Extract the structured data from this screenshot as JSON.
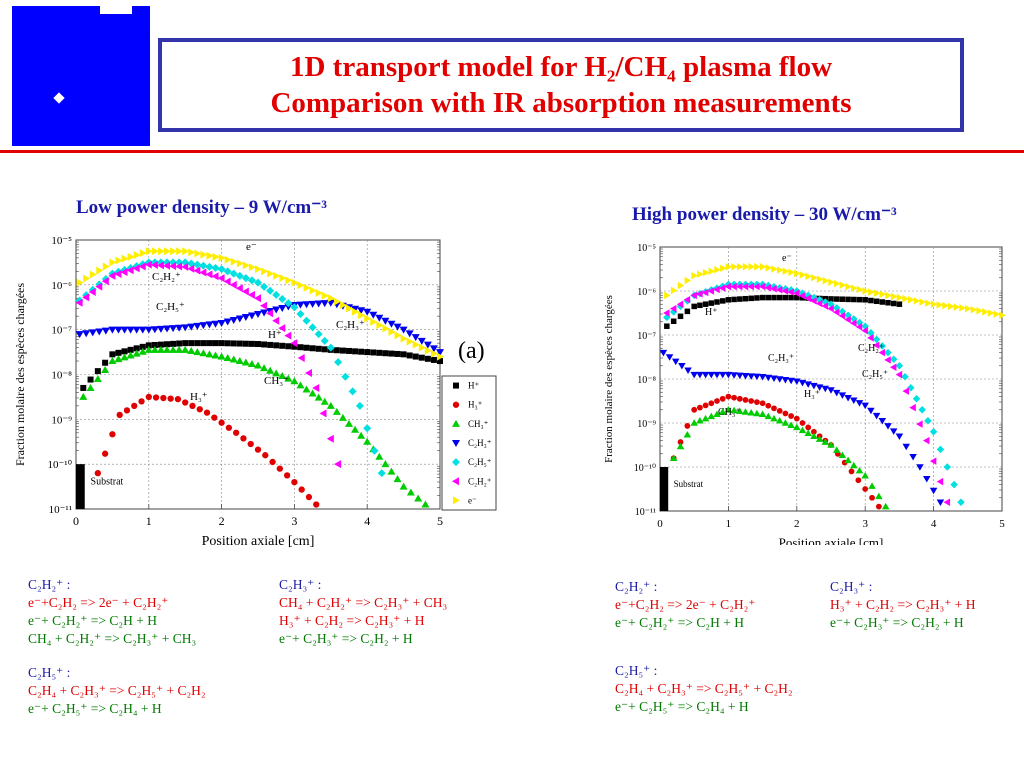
{
  "header": {
    "title_line1": "1D transport model for H₂/CH₄ plasma flow",
    "title_line2": "Comparison with IR absorption measurements"
  },
  "colors": {
    "logo_blue": "#0000ff",
    "title_red": "#e00000",
    "frame_blue": "#3333aa",
    "subtitle_blue": "#1a1aaa",
    "reaction_red": "#e00000",
    "reaction_green": "#007a00"
  },
  "chart_data": [
    {
      "type": "scatter",
      "title": "Low power density – 9 W/cm⁻³",
      "xlabel": "Position axiale [cm]",
      "ylabel": "Fraction molaire des espèces chargées",
      "xlim": [
        0,
        5
      ],
      "ylim_log10": [
        -11,
        -5
      ],
      "yscale": "log",
      "xticks": [
        "0",
        "1",
        "2",
        "3",
        "4",
        "5"
      ],
      "yticks": [
        "10⁻¹¹",
        "10⁻¹⁰",
        "10⁻⁹",
        "10⁻⁸",
        "10⁻⁷",
        "10⁻⁶",
        "10⁻⁵"
      ],
      "panel_label": "(a)",
      "substrat_label": "Substrat",
      "grid": true,
      "legend": "right",
      "series": [
        {
          "name": "H⁺",
          "color": "#000000",
          "marker": "square",
          "x": [
            0.1,
            0.5,
            1.0,
            1.5,
            2.0,
            2.5,
            3.0,
            3.5,
            4.0,
            4.5,
            5.0
          ],
          "log10_y": [
            -8.3,
            -7.55,
            -7.35,
            -7.3,
            -7.3,
            -7.32,
            -7.38,
            -7.45,
            -7.5,
            -7.55,
            -7.7
          ]
        },
        {
          "name": "H₃⁺",
          "color": "#e00000",
          "marker": "circle",
          "x": [
            0.3,
            0.6,
            1.0,
            1.4,
            1.8,
            2.2,
            2.6,
            3.0,
            3.3
          ],
          "log10_y": [
            -10.2,
            -8.9,
            -8.5,
            -8.55,
            -8.85,
            -9.3,
            -9.8,
            -10.4,
            -10.9
          ]
        },
        {
          "name": "CH₃⁺",
          "color": "#00cc00",
          "marker": "triangle-up",
          "x": [
            0.1,
            0.5,
            1.0,
            1.5,
            2.0,
            2.5,
            3.0,
            3.5,
            4.0,
            4.5,
            4.8
          ],
          "log10_y": [
            -8.5,
            -7.7,
            -7.45,
            -7.45,
            -7.6,
            -7.8,
            -8.15,
            -8.7,
            -9.5,
            -10.5,
            -10.9
          ]
        },
        {
          "name": "C₂H₃⁺",
          "color": "#0000ee",
          "marker": "triangle-down",
          "x": [
            0.05,
            0.5,
            1.0,
            1.5,
            2.0,
            2.5,
            3.0,
            3.5,
            4.0,
            4.5,
            5.0
          ],
          "log10_y": [
            -7.1,
            -7.0,
            -7.0,
            -6.95,
            -6.85,
            -6.65,
            -6.45,
            -6.4,
            -6.6,
            -7.0,
            -7.5
          ]
        },
        {
          "name": "C₂H₅⁺",
          "color": "#00e0e0",
          "marker": "diamond",
          "x": [
            0.05,
            0.5,
            1.0,
            1.5,
            2.0,
            2.5,
            3.0,
            3.5,
            3.9,
            4.2
          ],
          "log10_y": [
            -6.35,
            -5.75,
            -5.5,
            -5.5,
            -5.65,
            -5.95,
            -6.5,
            -7.4,
            -8.7,
            -10.2
          ]
        },
        {
          "name": "C₂H₂⁺",
          "color": "#ff00ff",
          "marker": "triangle-left",
          "x": [
            0.05,
            0.5,
            1.0,
            1.5,
            2.0,
            2.5,
            3.0,
            3.3,
            3.6
          ],
          "log10_y": [
            -6.4,
            -5.8,
            -5.55,
            -5.6,
            -5.85,
            -6.3,
            -7.3,
            -8.3,
            -10.0
          ]
        },
        {
          "name": "e⁻",
          "color": "#ffee00",
          "marker": "triangle-right",
          "x": [
            0.05,
            0.5,
            1.0,
            1.5,
            2.0,
            2.5,
            3.0,
            3.5,
            4.0,
            4.5,
            5.0
          ],
          "log10_y": [
            -5.95,
            -5.5,
            -5.25,
            -5.25,
            -5.4,
            -5.65,
            -5.95,
            -6.3,
            -6.75,
            -7.2,
            -7.6
          ]
        }
      ],
      "annotations": [
        "e⁻",
        "C₂H₂⁺",
        "C₂H₅⁺",
        "C₂H₃⁺",
        "H⁺",
        "CH₃⁺",
        "H₃⁺"
      ]
    },
    {
      "type": "scatter",
      "title": "High power density – 30 W/cm⁻³",
      "xlabel": "Position axiale [cm]",
      "ylabel": "Fraction molaire des espèces chargées",
      "xlim": [
        0,
        5
      ],
      "ylim_log10": [
        -11,
        -5
      ],
      "yscale": "log",
      "xticks": [
        "0",
        "1",
        "2",
        "3",
        "4",
        "5"
      ],
      "yticks": [
        "10⁻¹¹",
        "10⁻¹⁰",
        "10⁻⁹",
        "10⁻⁸",
        "10⁻⁷",
        "10⁻⁶",
        "10⁻⁵"
      ],
      "substrat_label": "Substrat",
      "grid": true,
      "series": [
        {
          "name": "H⁺",
          "color": "#000000",
          "marker": "square",
          "x": [
            0.1,
            0.5,
            1.0,
            1.5,
            2.0,
            2.5,
            3.0,
            3.5
          ],
          "log10_y": [
            -6.8,
            -6.35,
            -6.2,
            -6.15,
            -6.15,
            -6.18,
            -6.2,
            -6.3
          ]
        },
        {
          "name": "H₃⁺",
          "color": "#e00000",
          "marker": "circle",
          "x": [
            0.2,
            0.5,
            1.0,
            1.5,
            2.0,
            2.5,
            2.9,
            3.2
          ],
          "log10_y": [
            -9.8,
            -8.7,
            -8.4,
            -8.55,
            -8.9,
            -9.5,
            -10.3,
            -10.9
          ]
        },
        {
          "name": "CH₃⁺",
          "color": "#00cc00",
          "marker": "triangle-up",
          "x": [
            0.2,
            0.5,
            1.0,
            1.5,
            2.0,
            2.5,
            3.0,
            3.3
          ],
          "log10_y": [
            -9.8,
            -9.0,
            -8.7,
            -8.8,
            -9.1,
            -9.5,
            -10.2,
            -10.9
          ]
        },
        {
          "name": "C₂H₃⁺",
          "color": "#0000ee",
          "marker": "triangle-down",
          "x": [
            0.05,
            0.5,
            1.0,
            1.5,
            2.0,
            2.5,
            3.0,
            3.5,
            3.8,
            4.1
          ],
          "log10_y": [
            -7.4,
            -7.9,
            -7.9,
            -7.95,
            -8.05,
            -8.25,
            -8.6,
            -9.3,
            -10.0,
            -10.8
          ]
        },
        {
          "name": "C₂H₅⁺",
          "color": "#00e0e0",
          "marker": "diamond",
          "x": [
            0.1,
            0.5,
            1.0,
            1.5,
            2.0,
            2.5,
            3.0,
            3.5,
            4.0,
            4.4
          ],
          "log10_y": [
            -6.6,
            -6.1,
            -5.85,
            -5.85,
            -6.0,
            -6.3,
            -6.8,
            -7.7,
            -9.2,
            -10.8
          ]
        },
        {
          "name": "C₂H₂⁺",
          "color": "#ff00ff",
          "marker": "triangle-left",
          "x": [
            0.1,
            0.5,
            1.0,
            1.5,
            2.0,
            2.5,
            3.0,
            3.5,
            3.9,
            4.2
          ],
          "log10_y": [
            -6.5,
            -6.1,
            -5.9,
            -5.9,
            -6.05,
            -6.4,
            -6.9,
            -7.9,
            -9.4,
            -10.8
          ]
        },
        {
          "name": "e⁻",
          "color": "#ffee00",
          "marker": "triangle-right",
          "x": [
            0.1,
            0.5,
            1.0,
            1.5,
            2.0,
            2.5,
            3.0,
            3.5,
            4.0,
            4.5,
            5.0
          ],
          "log10_y": [
            -6.1,
            -5.65,
            -5.45,
            -5.45,
            -5.6,
            -5.8,
            -6.0,
            -6.15,
            -6.3,
            -6.4,
            -6.55
          ]
        }
      ],
      "annotations": [
        "e⁻",
        "H⁺",
        "C₂H₃⁺",
        "C₂H₅⁺",
        "C₂H₂⁺",
        "H₃⁺",
        "CH₃⁺"
      ]
    }
  ],
  "reactions_left": {
    "c2h2": {
      "head": "C₂H₂⁺ :",
      "r1": "e⁻+C₂H₂ => 2e⁻ + C₂H₂⁺",
      "r2": "e⁻+ C₂H₂⁺ => C₂H + H",
      "r3": "CH₄ + C₂H₂⁺ => C₂H₃⁺ + CH₃"
    },
    "c2h3": {
      "head": "C₂H₃⁺ :",
      "r1": "CH₄ + C₂H₂⁺ => C₂H₃⁺ + CH₃",
      "r2": "H₃⁺ + C₂H₂ => C₂H₃⁺ + H",
      "r3": "e⁻+ C₂H₃⁺ => C₂H₂ + H"
    },
    "c2h5": {
      "head": "C₂H₅⁺ :",
      "r1": "C₂H₄ + C₂H₃⁺ => C₂H₅⁺ + C₂H₂",
      "r2": "e⁻+ C₂H₅⁺ => C₂H₄ + H"
    }
  },
  "reactions_right": {
    "c2h2": {
      "head": "C₂H₂⁺ :",
      "r1": "e⁻+C₂H₂ => 2e⁻ + C₂H₂⁺",
      "r2": "e⁻+ C₂H₂⁺ => C₂H + H"
    },
    "c2h3": {
      "head": "C₂H₃⁺ :",
      "r1": "H₃⁺ + C₂H₂ => C₂H₃⁺ + H",
      "r2": "e⁻+ C₂H₃⁺ => C₂H₂ + H"
    },
    "c2h5": {
      "head": "C₂H₅⁺ :",
      "r1": "C₂H₄ + C₂H₃⁺ => C₂H₅⁺ + C₂H₂",
      "r2": "e⁻+ C₂H₅⁺ => C₂H₄ + H"
    }
  }
}
